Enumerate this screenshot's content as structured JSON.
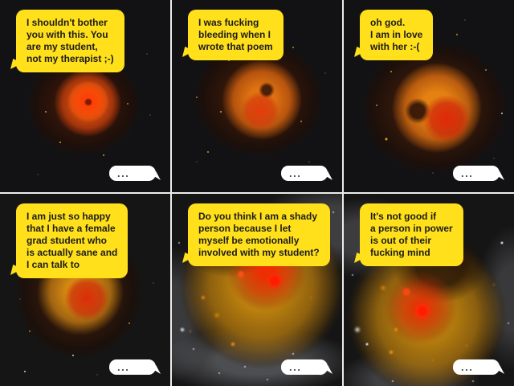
{
  "comic": {
    "colors": {
      "speech_bubble": "#ffe01a",
      "speech_text": "#1c1c1c",
      "reply_bubble": "#ffffff",
      "reply_text": "#4a4a4a",
      "panel_background": "#131315",
      "gutter": "#ececec",
      "nebula_core_red": "#ff1c00",
      "nebula_orange": "#e8821a",
      "nebula_gold": "#c4861c"
    },
    "panels": [
      {
        "speech": "I shouldn't bother\nyou with this. You\nare my student,\nnot my therapist ;-)",
        "reply": "...",
        "nebula": "small-red-ring-nebula"
      },
      {
        "speech": "I was fucking\nbleeding when I\nwrote that poem",
        "reply": "...",
        "nebula": "orange-ring-nebula"
      },
      {
        "speech": "oh god.\nI am in love\nwith her :-(",
        "reply": "...",
        "nebula": "orange-red-ring-nebula"
      },
      {
        "speech": "I am just so happy\nthat I have a female\ngrad student who\nis actually sane and\nI can talk to",
        "reply": "...",
        "nebula": "gold-swirl-nebula"
      },
      {
        "speech": "Do you think I am a shady\nperson because I let\nmyself be emotionally\ninvolved with my student?",
        "reply": "...",
        "nebula": "large-gold-dust-nebula"
      },
      {
        "speech": "It's not good if\na person in power\nis out of their\nfucking mind",
        "reply": "...",
        "nebula": "large-gold-dust-nebula"
      }
    ]
  }
}
